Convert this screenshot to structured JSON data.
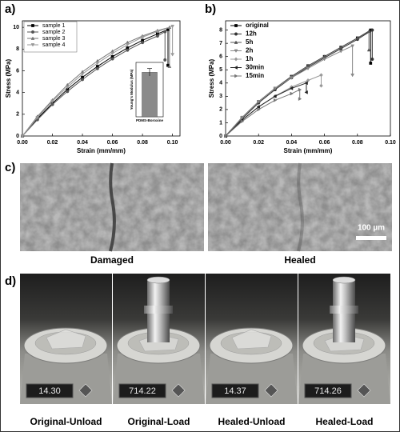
{
  "chart_data": [
    {
      "type": "line",
      "xlabel": "Strain (mm/mm)",
      "ylabel": "Stress (MPa)",
      "xlim": [
        0,
        0.105
      ],
      "xticks": [
        {
          "value": 0,
          "label": "0.00"
        },
        0.02,
        0.04,
        0.06,
        0.08,
        {
          "value": 0.1,
          "label": "0.10"
        }
      ],
      "ylim": [
        0,
        10.6
      ],
      "yticks": [
        0,
        2,
        4,
        6,
        8,
        10
      ],
      "legend": "upper left",
      "series": [
        {
          "name": "sample 1",
          "color": "#000000",
          "marker": "square",
          "x": [
            0,
            0.01,
            0.02,
            0.03,
            0.04,
            0.05,
            0.06,
            0.07,
            0.08,
            0.09,
            0.097,
            0.097
          ],
          "values": [
            0,
            1.6,
            3.0,
            4.3,
            5.4,
            6.4,
            7.3,
            8.1,
            8.8,
            9.4,
            9.8,
            6.5
          ]
        },
        {
          "name": "sample 2",
          "color": "#555555",
          "marker": "circle",
          "x": [
            0,
            0.01,
            0.02,
            0.03,
            0.04,
            0.05,
            0.06,
            0.07,
            0.08,
            0.09,
            0.095,
            0.095
          ],
          "values": [
            0,
            1.5,
            2.9,
            4.1,
            5.2,
            6.2,
            7.1,
            7.9,
            8.6,
            9.2,
            9.6,
            7.0
          ]
        },
        {
          "name": "sample 3",
          "color": "#777777",
          "marker": "triangle-up",
          "x": [
            0,
            0.01,
            0.02,
            0.03,
            0.04,
            0.05,
            0.06,
            0.07,
            0.08,
            0.09,
            0.098,
            0.098
          ],
          "values": [
            0,
            1.8,
            3.3,
            4.7,
            5.9,
            6.9,
            7.8,
            8.6,
            9.2,
            9.7,
            10.0,
            6.4
          ]
        },
        {
          "name": "sample 4",
          "color": "#999999",
          "marker": "triangle-down",
          "x": [
            0,
            0.01,
            0.02,
            0.03,
            0.04,
            0.05,
            0.06,
            0.07,
            0.08,
            0.09,
            0.1,
            0.1
          ],
          "values": [
            0,
            1.7,
            3.2,
            4.5,
            5.7,
            6.7,
            7.6,
            8.4,
            9.1,
            9.6,
            10.1,
            7.5
          ]
        }
      ]
    },
    {
      "type": "line",
      "xlabel": "Strain (mm/mm)",
      "ylabel": "Stress (MPa)",
      "xlim": [
        0,
        0.1
      ],
      "xticks": [
        {
          "value": 0,
          "label": "0.00"
        },
        0.02,
        0.04,
        0.06,
        0.08,
        {
          "value": 0.1,
          "label": "0.10"
        }
      ],
      "ylim": [
        0,
        8.7
      ],
      "yticks": [
        0,
        1,
        2,
        3,
        4,
        5,
        6,
        7,
        8
      ],
      "legend": "upper left",
      "series": [
        {
          "name": "original",
          "color": "#000000",
          "marker": "square",
          "x": [
            0,
            0.01,
            0.02,
            0.03,
            0.04,
            0.05,
            0.06,
            0.07,
            0.08,
            0.088,
            0.088
          ],
          "values": [
            0,
            1.4,
            2.6,
            3.6,
            4.5,
            5.3,
            6.0,
            6.7,
            7.4,
            8.0,
            5.5
          ]
        },
        {
          "name": "12h",
          "color": "#333333",
          "marker": "circle",
          "x": [
            0,
            0.01,
            0.02,
            0.03,
            0.04,
            0.05,
            0.06,
            0.07,
            0.08,
            0.089,
            0.089
          ],
          "values": [
            0,
            1.3,
            2.5,
            3.5,
            4.4,
            5.2,
            5.9,
            6.6,
            7.3,
            8.0,
            5.8
          ]
        },
        {
          "name": "5h",
          "color": "#555555",
          "marker": "triangle-up",
          "x": [
            0,
            0.01,
            0.02,
            0.03,
            0.04,
            0.05,
            0.06,
            0.07,
            0.08,
            0.087,
            0.087
          ],
          "values": [
            0,
            1.4,
            2.6,
            3.6,
            4.5,
            5.3,
            6.0,
            6.7,
            7.4,
            7.9,
            6.5
          ]
        },
        {
          "name": "2h",
          "color": "#888888",
          "marker": "triangle-down",
          "x": [
            0,
            0.01,
            0.02,
            0.03,
            0.04,
            0.05,
            0.06,
            0.07,
            0.077,
            0.077
          ],
          "values": [
            0,
            1.4,
            2.6,
            3.6,
            4.4,
            5.1,
            5.8,
            6.4,
            6.8,
            4.6
          ]
        },
        {
          "name": "1h",
          "color": "#999999",
          "marker": "diamond",
          "x": [
            0,
            0.01,
            0.02,
            0.03,
            0.04,
            0.05,
            0.058,
            0.058
          ],
          "values": [
            0,
            1.2,
            2.2,
            3.0,
            3.7,
            4.2,
            4.6,
            3.8
          ]
        },
        {
          "name": "30min",
          "color": "#222222",
          "marker": "triangle-left",
          "x": [
            0,
            0.01,
            0.02,
            0.03,
            0.04,
            0.049,
            0.049
          ],
          "values": [
            0,
            1.2,
            2.2,
            3.0,
            3.6,
            4.0,
            3.3
          ]
        },
        {
          "name": "15min",
          "color": "#777777",
          "marker": "triangle-right",
          "x": [
            0,
            0.01,
            0.02,
            0.03,
            0.04,
            0.045,
            0.045
          ],
          "values": [
            0,
            1.1,
            2.0,
            2.7,
            3.2,
            3.5,
            2.8
          ]
        }
      ]
    },
    {
      "type": "bar",
      "ylabel": "Young's Modulus (MPa)",
      "categories": [
        "PDMS-Boroxine"
      ],
      "values": [
        180
      ],
      "errors": [
        15
      ],
      "ylim": [
        0,
        220
      ],
      "color": "#8a8a8a"
    }
  ],
  "figure": {
    "panel_labels": [
      "a)",
      "b)",
      "c)",
      "d)"
    ],
    "micrographs": [
      {
        "label": "Damaged"
      },
      {
        "label": "Healed"
      }
    ],
    "scale_bar": "100 µm",
    "photos": [
      {
        "label": "Original-Unload",
        "display": "14.30"
      },
      {
        "label": "Original-Load",
        "display": "714.22"
      },
      {
        "label": "Healed-Unload",
        "display": "14.37"
      },
      {
        "label": "Healed-Load",
        "display": "714.26"
      }
    ]
  }
}
